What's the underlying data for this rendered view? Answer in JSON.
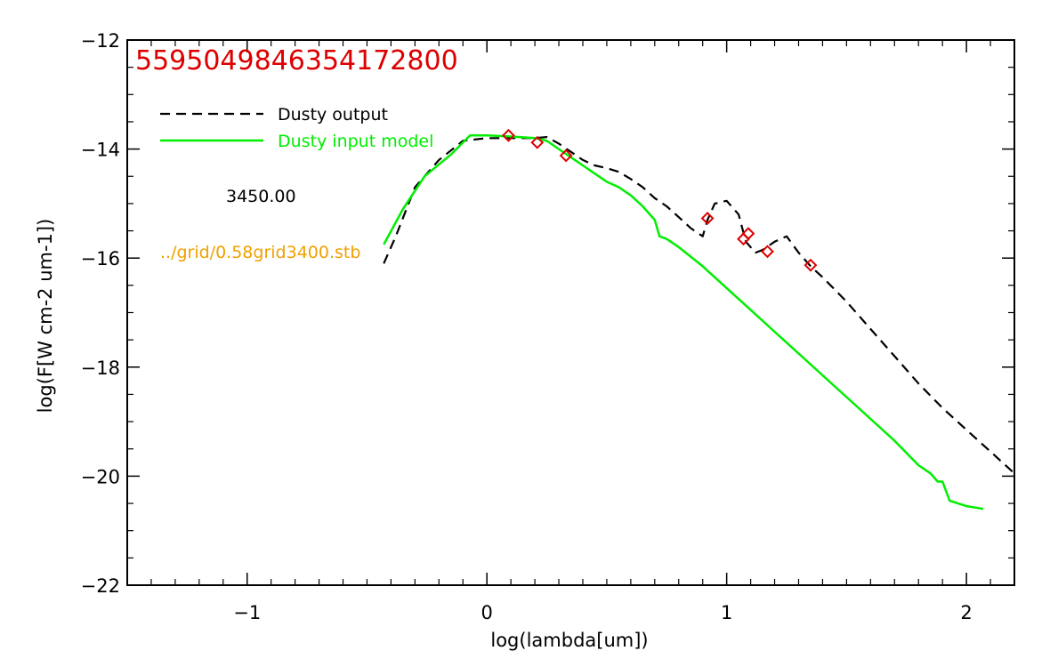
{
  "chart_data": {
    "type": "line",
    "title": "55950498463541728​00",
    "xlabel": "log(lambda[um])",
    "ylabel": "log(F[W cm-2 um-1])",
    "xlim": [
      -1.5,
      2.2
    ],
    "ylim": [
      -22,
      -12
    ],
    "x_ticks": [
      {
        "value": -1,
        "label": "−1"
      },
      {
        "value": 0,
        "label": "0"
      },
      {
        "value": 1,
        "label": "1"
      },
      {
        "value": 2,
        "label": "2"
      }
    ],
    "y_ticks": [
      {
        "value": -12,
        "label": "−12"
      },
      {
        "value": -14,
        "label": "−14"
      },
      {
        "value": -16,
        "label": "−16"
      },
      {
        "value": -18,
        "label": "−18"
      },
      {
        "value": -20,
        "label": "−20"
      },
      {
        "value": -22,
        "label": "−22"
      }
    ],
    "legend_position": "top-left",
    "series": [
      {
        "name": "Dusty output",
        "style": "dashed",
        "color": "#000000",
        "x": [
          -0.43,
          -0.38,
          -0.3,
          -0.2,
          -0.1,
          0.0,
          0.1,
          0.2,
          0.25,
          0.3,
          0.35,
          0.4,
          0.45,
          0.5,
          0.55,
          0.6,
          0.65,
          0.7,
          0.75,
          0.8,
          0.85,
          0.9,
          0.92,
          0.95,
          1.0,
          1.05,
          1.08,
          1.12,
          1.15,
          1.2,
          1.25,
          1.3,
          1.35,
          1.4,
          1.5,
          1.6,
          1.7,
          1.8,
          1.9,
          2.0,
          2.1,
          2.2
        ],
        "y": [
          -16.1,
          -15.6,
          -14.7,
          -14.2,
          -13.85,
          -13.8,
          -13.8,
          -13.8,
          -13.78,
          -13.9,
          -14.05,
          -14.2,
          -14.3,
          -14.35,
          -14.42,
          -14.55,
          -14.7,
          -14.9,
          -15.05,
          -15.25,
          -15.45,
          -15.6,
          -15.3,
          -15.0,
          -14.95,
          -15.2,
          -15.7,
          -15.9,
          -15.85,
          -15.7,
          -15.6,
          -15.9,
          -16.15,
          -16.35,
          -16.8,
          -17.3,
          -17.8,
          -18.3,
          -18.75,
          -19.15,
          -19.55,
          -19.95
        ]
      },
      {
        "name": "Dusty input model",
        "style": "solid",
        "color": "#00ee00",
        "x": [
          -0.43,
          -0.35,
          -0.26,
          -0.15,
          -0.07,
          0.0,
          0.1,
          0.2,
          0.25,
          0.3,
          0.35,
          0.4,
          0.45,
          0.5,
          0.55,
          0.6,
          0.65,
          0.7,
          0.72,
          0.75,
          0.8,
          0.9,
          1.0,
          1.1,
          1.2,
          1.3,
          1.4,
          1.5,
          1.6,
          1.7,
          1.8,
          1.85,
          1.88,
          1.9,
          1.93,
          2.0,
          2.07
        ],
        "y": [
          -15.75,
          -15.1,
          -14.5,
          -14.1,
          -13.75,
          -13.75,
          -13.77,
          -13.8,
          -13.85,
          -14.0,
          -14.15,
          -14.3,
          -14.45,
          -14.6,
          -14.7,
          -14.85,
          -15.05,
          -15.3,
          -15.6,
          -15.65,
          -15.8,
          -16.15,
          -16.55,
          -16.95,
          -17.35,
          -17.75,
          -18.15,
          -18.55,
          -18.95,
          -19.35,
          -19.8,
          -19.95,
          -20.1,
          -20.1,
          -20.45,
          -20.55,
          -20.6
        ]
      },
      {
        "name": "",
        "style": "diamond",
        "color": "#dd0000",
        "x": [
          0.09,
          0.21,
          0.33,
          0.92,
          1.07,
          1.09,
          1.17,
          1.35
        ],
        "y": [
          -13.75,
          -13.88,
          -14.12,
          -15.27,
          -15.65,
          -15.55,
          -15.88,
          -16.13
        ]
      }
    ]
  },
  "annotations": {
    "value_text": "3450.00",
    "value_color": "#000000",
    "file_text": "../grid/0.58grid3400.stb",
    "file_color": "#f0a000",
    "title_color": "#dd0000"
  }
}
